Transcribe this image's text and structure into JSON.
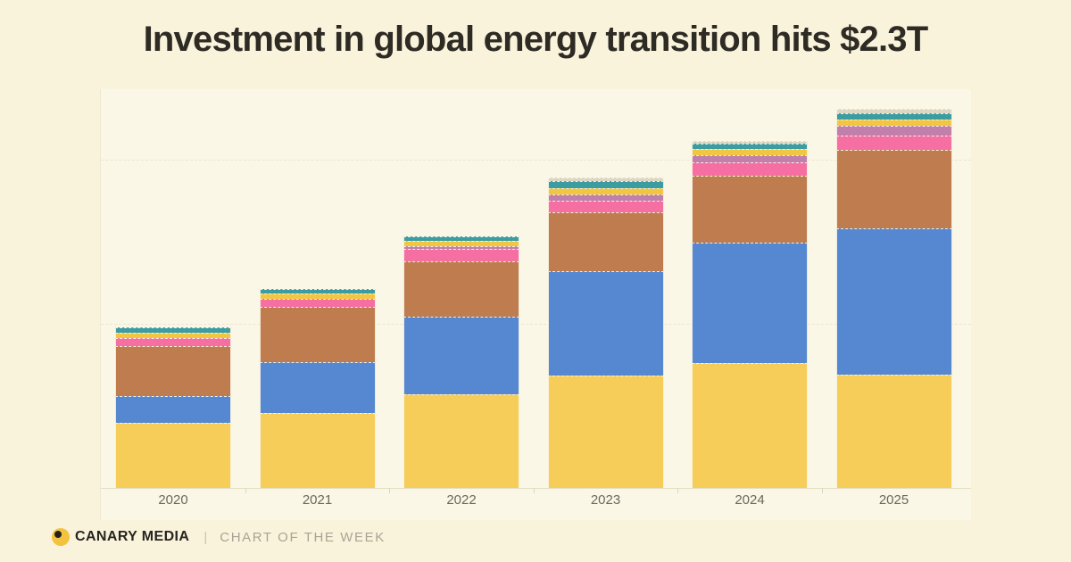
{
  "page": {
    "title": "Investment in global energy transition hits $2.3T"
  },
  "footer": {
    "brand": "CANARY MEDIA",
    "divider": "|",
    "tagline": "CHART OF THE WEEK",
    "logo_color": "#F3C33F",
    "logo_dot_color": "#23211C"
  },
  "colors": {
    "page_background": "#FAF3DB",
    "plot_background": "#FBF7E7",
    "title_text": "#2E2B25",
    "axis_label": "#6B675C",
    "gridline": "#EBE4CE"
  },
  "chart_data": {
    "type": "bar",
    "stacked": true,
    "title": "Investment in global energy transition hits $2.3T",
    "unit_note": "values estimated from bar heights, billions of USD; 2025 total labeled $2.3T in title",
    "categories": [
      "2020",
      "2021",
      "2022",
      "2023",
      "2024",
      "2025"
    ],
    "series": [
      {
        "name": "segment-yellow",
        "color": "#F7CD59",
        "values": [
          390,
          450,
          565,
          680,
          755,
          685
        ]
      },
      {
        "name": "segment-blue",
        "color": "#5588D1",
        "values": [
          160,
          305,
          470,
          630,
          730,
          885
        ]
      },
      {
        "name": "segment-brown",
        "color": "#BF7D4F",
        "values": [
          296,
          330,
          330,
          355,
          400,
          475
        ]
      },
      {
        "name": "segment-pink",
        "color": "#F56FA3",
        "values": [
          44,
          45,
          72,
          64,
          77,
          78
        ]
      },
      {
        "name": "segment-mauve",
        "color": "#C180AC",
        "values": [
          0,
          0,
          8,
          32,
          40,
          56
        ]
      },
      {
        "name": "segment-gold",
        "color": "#F2C640",
        "values": [
          28,
          26,
          26,
          32,
          32,
          34
        ]
      },
      {
        "name": "segment-teal",
        "color": "#3B9CA1",
        "values": [
          27,
          24,
          24,
          38,
          27,
          34
        ]
      },
      {
        "name": "segment-light",
        "color": "#DCD6C2",
        "values": [
          0,
          0,
          0,
          16,
          10,
          22
        ]
      }
    ],
    "totals_estimated": [
      945,
      1180,
      1495,
      1847,
      2071,
      2269
    ],
    "ylim_B": [
      0,
      2430
    ],
    "y_gridlines_B": [
      1000,
      2000
    ],
    "legend": "none visible",
    "y_axis_labels": "none visible"
  }
}
